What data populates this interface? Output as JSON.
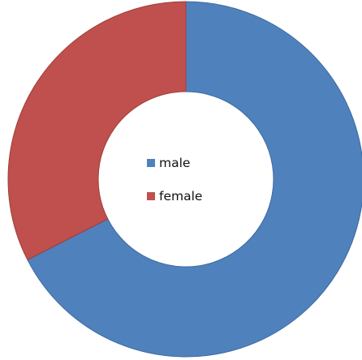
{
  "chart_data": {
    "type": "pie",
    "style": "donut",
    "title": "",
    "legend_position": "center",
    "slices": [
      {
        "label": "male",
        "value": 67.5,
        "color": "#4f81bd",
        "edge": "#3d6aa0"
      },
      {
        "label": "female",
        "value": 32.5,
        "color": "#c0504d",
        "edge": "#9e3d3a"
      }
    ]
  }
}
